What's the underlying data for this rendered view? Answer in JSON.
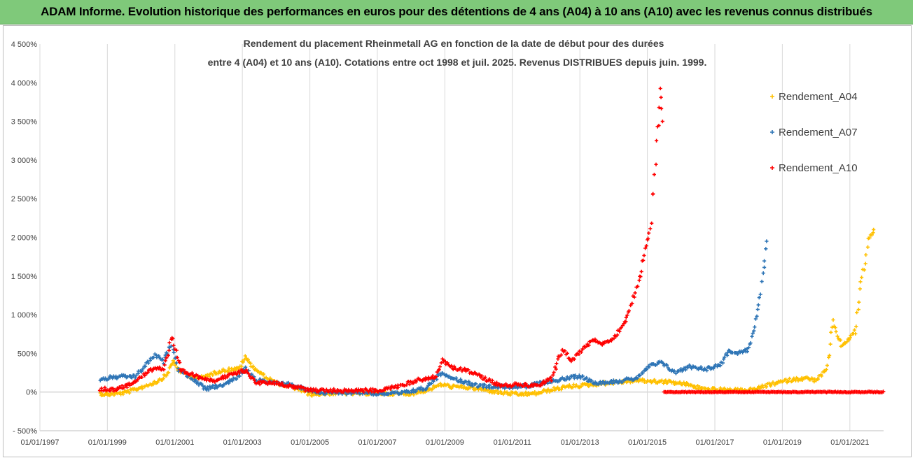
{
  "header": {
    "title": "ADAM Informe. Evolution historique des performances en euros pour des détentions de 4 ans (A04) à 10 ans (A10) avec les revenus connus distribués"
  },
  "chart_data": {
    "type": "scatter",
    "title_lines": [
      "Rendement du placement Rheinmetall AG en fonction de la date de début pour des durées",
      "entre 4 (A04) et 10 ans (A10). Cotations entre oct 1998 et juil. 2025. Revenus DISTRIBUES depuis juin. 1999."
    ],
    "x_ticks": [
      "01/01/1997",
      "01/01/1999",
      "01/01/2001",
      "01/01/2003",
      "01/01/2005",
      "01/01/2007",
      "01/01/2009",
      "01/01/2011",
      "01/01/2013",
      "01/01/2015",
      "01/01/2017",
      "01/01/2019",
      "01/01/2021"
    ],
    "xlim": [
      "1997-01-01",
      "2022-01-01"
    ],
    "y_ticks": [
      "- 500%",
      "0%",
      "500%",
      "1 000%",
      "1 500%",
      "2 000%",
      "2 500%",
      "3 000%",
      "3 500%",
      "4 000%",
      "4 500%"
    ],
    "ylim": [
      -500,
      4500
    ],
    "grid": "vertical",
    "legend_position": "right",
    "series": [
      {
        "name": "Rendement_A04",
        "color": "#ffc000",
        "marker": "+",
        "points": [
          [
            "1998-10-15",
            -20
          ],
          [
            "1999-01-01",
            -30
          ],
          [
            "1999-04-01",
            -20
          ],
          [
            "1999-07-01",
            -10
          ],
          [
            "1999-10-01",
            20
          ],
          [
            "2000-01-01",
            60
          ],
          [
            "2000-04-01",
            100
          ],
          [
            "2000-07-01",
            140
          ],
          [
            "2000-10-01",
            220
          ],
          [
            "2000-12-15",
            400
          ],
          [
            "2001-02-01",
            300
          ],
          [
            "2001-06-01",
            200
          ],
          [
            "2001-10-01",
            180
          ],
          [
            "2002-01-01",
            220
          ],
          [
            "2002-04-01",
            260
          ],
          [
            "2002-08-01",
            290
          ],
          [
            "2002-12-01",
            300
          ],
          [
            "2003-02-01",
            450
          ],
          [
            "2003-05-01",
            320
          ],
          [
            "2003-09-01",
            200
          ],
          [
            "2004-01-01",
            120
          ],
          [
            "2004-05-01",
            80
          ],
          [
            "2004-09-01",
            40
          ],
          [
            "2005-01-01",
            -30
          ],
          [
            "2005-06-01",
            -20
          ],
          [
            "2006-01-01",
            -10
          ],
          [
            "2006-06-01",
            -20
          ],
          [
            "2007-01-01",
            -10
          ],
          [
            "2007-06-01",
            -20
          ],
          [
            "2008-01-01",
            -20
          ],
          [
            "2008-06-01",
            20
          ],
          [
            "2008-12-01",
            100
          ],
          [
            "2009-03-01",
            70
          ],
          [
            "2009-09-01",
            60
          ],
          [
            "2010-03-01",
            30
          ],
          [
            "2010-09-01",
            -10
          ],
          [
            "2011-03-01",
            -30
          ],
          [
            "2011-09-01",
            -20
          ],
          [
            "2012-03-01",
            30
          ],
          [
            "2012-09-01",
            70
          ],
          [
            "2013-03-01",
            90
          ],
          [
            "2013-09-01",
            110
          ],
          [
            "2014-03-01",
            130
          ],
          [
            "2014-09-01",
            150
          ],
          [
            "2015-03-01",
            140
          ],
          [
            "2015-09-01",
            130
          ],
          [
            "2016-03-01",
            100
          ],
          [
            "2016-09-01",
            40
          ],
          [
            "2017-03-01",
            30
          ],
          [
            "2017-09-01",
            20
          ],
          [
            "2018-03-01",
            30
          ],
          [
            "2018-09-01",
            100
          ],
          [
            "2019-03-01",
            150
          ],
          [
            "2019-09-01",
            180
          ],
          [
            "2020-01-01",
            150
          ],
          [
            "2020-05-01",
            300
          ],
          [
            "2020-07-01",
            900
          ],
          [
            "2020-10-01",
            600
          ],
          [
            "2021-01-01",
            700
          ],
          [
            "2021-03-01",
            800
          ],
          [
            "2021-05-01",
            1400
          ],
          [
            "2021-08-01",
            2000
          ],
          [
            "2021-09-15",
            2100
          ]
        ]
      },
      {
        "name": "Rendement_A07",
        "color": "#2e75b6",
        "marker": "+",
        "points": [
          [
            "1998-10-15",
            160
          ],
          [
            "1999-01-01",
            180
          ],
          [
            "1999-06-01",
            200
          ],
          [
            "1999-11-01",
            200
          ],
          [
            "2000-03-01",
            360
          ],
          [
            "2000-06-01",
            480
          ],
          [
            "2000-09-01",
            390
          ],
          [
            "2000-12-01",
            650
          ],
          [
            "2001-02-01",
            300
          ],
          [
            "2001-07-01",
            180
          ],
          [
            "2001-12-01",
            40
          ],
          [
            "2002-05-01",
            80
          ],
          [
            "2002-11-01",
            180
          ],
          [
            "2003-02-01",
            300
          ],
          [
            "2003-06-01",
            150
          ],
          [
            "2003-12-01",
            120
          ],
          [
            "2004-06-01",
            100
          ],
          [
            "2004-12-01",
            30
          ],
          [
            "2005-06-01",
            -10
          ],
          [
            "2006-01-01",
            -10
          ],
          [
            "2006-06-01",
            0
          ],
          [
            "2007-01-01",
            -20
          ],
          [
            "2007-09-01",
            -20
          ],
          [
            "2008-06-01",
            50
          ],
          [
            "2008-12-01",
            250
          ],
          [
            "2009-06-01",
            150
          ],
          [
            "2010-01-01",
            80
          ],
          [
            "2010-09-01",
            70
          ],
          [
            "2011-06-01",
            70
          ],
          [
            "2012-01-01",
            130
          ],
          [
            "2012-09-01",
            180
          ],
          [
            "2013-01-01",
            210
          ],
          [
            "2013-06-01",
            120
          ],
          [
            "2014-03-01",
            140
          ],
          [
            "2014-09-01",
            180
          ],
          [
            "2015-02-01",
            340
          ],
          [
            "2015-06-01",
            380
          ],
          [
            "2015-11-01",
            250
          ],
          [
            "2016-04-01",
            330
          ],
          [
            "2016-10-01",
            300
          ],
          [
            "2017-03-01",
            350
          ],
          [
            "2017-06-01",
            540
          ],
          [
            "2017-09-01",
            500
          ],
          [
            "2018-01-01",
            550
          ],
          [
            "2018-03-01",
            800
          ],
          [
            "2018-05-01",
            1200
          ],
          [
            "2018-06-15",
            1600
          ],
          [
            "2018-07-15",
            1950
          ]
        ]
      },
      {
        "name": "Rendement_A10",
        "color": "#ff0000",
        "marker": "+",
        "points": [
          [
            "1998-10-15",
            40
          ],
          [
            "1999-03-01",
            30
          ],
          [
            "1999-08-01",
            80
          ],
          [
            "2000-01-01",
            200
          ],
          [
            "2000-06-01",
            320
          ],
          [
            "2000-09-01",
            300
          ],
          [
            "2000-12-01",
            700
          ],
          [
            "2001-03-01",
            280
          ],
          [
            "2001-09-01",
            200
          ],
          [
            "2002-03-01",
            150
          ],
          [
            "2002-09-01",
            220
          ],
          [
            "2003-02-01",
            280
          ],
          [
            "2003-06-01",
            120
          ],
          [
            "2004-01-01",
            120
          ],
          [
            "2004-06-01",
            80
          ],
          [
            "2004-12-01",
            30
          ],
          [
            "2005-06-01",
            20
          ],
          [
            "2006-01-01",
            20
          ],
          [
            "2006-06-01",
            20
          ],
          [
            "2007-01-01",
            20
          ],
          [
            "2007-09-01",
            80
          ],
          [
            "2008-04-01",
            160
          ],
          [
            "2008-10-01",
            200
          ],
          [
            "2008-12-01",
            420
          ],
          [
            "2009-03-01",
            320
          ],
          [
            "2009-09-01",
            280
          ],
          [
            "2010-03-01",
            180
          ],
          [
            "2010-09-01",
            80
          ],
          [
            "2011-04-01",
            100
          ],
          [
            "2011-10-01",
            80
          ],
          [
            "2012-03-01",
            180
          ],
          [
            "2012-07-01",
            560
          ],
          [
            "2012-10-01",
            400
          ],
          [
            "2013-01-01",
            520
          ],
          [
            "2013-06-01",
            680
          ],
          [
            "2013-09-01",
            620
          ],
          [
            "2014-01-01",
            700
          ],
          [
            "2014-05-01",
            900
          ],
          [
            "2014-07-01",
            1100
          ],
          [
            "2014-10-01",
            1400
          ],
          [
            "2014-12-01",
            1800
          ],
          [
            "2015-02-01",
            2100
          ],
          [
            "2015-04-01",
            3000
          ],
          [
            "2015-05-20",
            3900
          ],
          [
            "2015-06-15",
            3500
          ]
        ],
        "flat_segment": {
          "from": "2015-07-01",
          "to": "2021-12-31",
          "value": 0
        }
      }
    ]
  }
}
